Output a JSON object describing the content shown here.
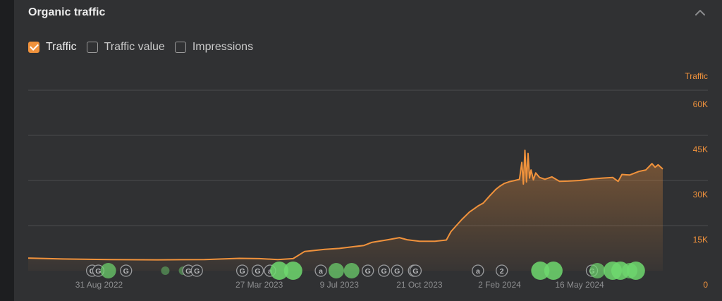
{
  "panel": {
    "title": "Organic traffic",
    "collapse_icon": "chevron-up-icon"
  },
  "toggles": [
    {
      "label": "Traffic",
      "checked": true
    },
    {
      "label": "Traffic value",
      "checked": false
    },
    {
      "label": "Impressions",
      "checked": false
    }
  ],
  "colors": {
    "accent": "#f0923c",
    "marker_green": "#6fd86f",
    "grid": "#4a4b4d"
  },
  "chart_data": {
    "type": "area",
    "y_axis_title": "Traffic",
    "y_ticks": [
      "60K",
      "45K",
      "30K",
      "15K",
      "0"
    ],
    "y_tick_values": [
      60000,
      45000,
      30000,
      15000,
      0
    ],
    "ylim": [
      0,
      60000
    ],
    "x_tick_labels": [
      "31 Aug 2022",
      "27 Mar 2023",
      "9 Jul 2023",
      "21 Oct 2023",
      "2 Feb 2024",
      "16 May 2024"
    ],
    "x_tick_dates": [
      "2022-08-31",
      "2023-03-27",
      "2023-07-09",
      "2023-10-21",
      "2024-02-02",
      "2024-05-16"
    ],
    "xlim": [
      "2022-05-31",
      "2024-09-01"
    ],
    "grid": true,
    "series": [
      {
        "name": "Traffic",
        "points": [
          [
            "2022-05-31",
            4200
          ],
          [
            "2022-07-15",
            3900
          ],
          [
            "2022-09-15",
            3700
          ],
          [
            "2022-11-15",
            3600
          ],
          [
            "2023-01-15",
            3700
          ],
          [
            "2023-03-01",
            4100
          ],
          [
            "2023-03-27",
            4000
          ],
          [
            "2023-04-20",
            3700
          ],
          [
            "2023-05-10",
            4000
          ],
          [
            "2023-05-25",
            6400
          ],
          [
            "2023-06-20",
            7100
          ],
          [
            "2023-07-09",
            7400
          ],
          [
            "2023-07-25",
            7900
          ],
          [
            "2023-08-10",
            8400
          ],
          [
            "2023-08-20",
            9400
          ],
          [
            "2023-09-10",
            10300
          ],
          [
            "2023-09-25",
            11000
          ],
          [
            "2023-10-05",
            10300
          ],
          [
            "2023-10-21",
            9800
          ],
          [
            "2023-11-10",
            9800
          ],
          [
            "2023-11-25",
            10200
          ],
          [
            "2023-12-01",
            13000
          ],
          [
            "2023-12-15",
            17000
          ],
          [
            "2023-12-25",
            19500
          ],
          [
            "2024-01-05",
            21500
          ],
          [
            "2024-01-12",
            22500
          ],
          [
            "2024-01-20",
            24800
          ],
          [
            "2024-01-28",
            27000
          ],
          [
            "2024-02-02",
            28000
          ],
          [
            "2024-02-08",
            29000
          ],
          [
            "2024-02-15",
            29600
          ],
          [
            "2024-02-22",
            30000
          ],
          [
            "2024-02-28",
            30400
          ],
          [
            "2024-03-02",
            36000
          ],
          [
            "2024-03-04",
            28800
          ],
          [
            "2024-03-06",
            40000
          ],
          [
            "2024-03-08",
            29500
          ],
          [
            "2024-03-10",
            39000
          ],
          [
            "2024-03-12",
            30800
          ],
          [
            "2024-03-14",
            33500
          ],
          [
            "2024-03-17",
            30200
          ],
          [
            "2024-03-20",
            32500
          ],
          [
            "2024-03-25",
            31000
          ],
          [
            "2024-04-01",
            30400
          ],
          [
            "2024-04-10",
            31200
          ],
          [
            "2024-04-20",
            29700
          ],
          [
            "2024-05-01",
            29800
          ],
          [
            "2024-05-16",
            30000
          ],
          [
            "2024-06-01",
            30500
          ],
          [
            "2024-06-15",
            30800
          ],
          [
            "2024-06-28",
            31000
          ],
          [
            "2024-07-05",
            29700
          ],
          [
            "2024-07-10",
            32000
          ],
          [
            "2024-07-20",
            31800
          ],
          [
            "2024-08-01",
            33000
          ],
          [
            "2024-08-10",
            33500
          ],
          [
            "2024-08-18",
            35600
          ],
          [
            "2024-08-22",
            34400
          ],
          [
            "2024-08-26",
            35200
          ],
          [
            "2024-09-01",
            33800
          ]
        ]
      }
    ],
    "annotations": [
      {
        "date": "2022-08-22",
        "type": "letter",
        "label": "G"
      },
      {
        "date": "2022-08-30",
        "type": "letter",
        "label": "G"
      },
      {
        "date": "2022-09-12",
        "type": "dot",
        "level": 2
      },
      {
        "date": "2022-10-05",
        "type": "letter",
        "label": "G"
      },
      {
        "date": "2022-11-25",
        "type": "dot",
        "level": 1
      },
      {
        "date": "2022-12-18",
        "type": "dot",
        "level": 1
      },
      {
        "date": "2022-12-25",
        "type": "letter",
        "label": "G"
      },
      {
        "date": "2023-01-05",
        "type": "letter",
        "label": "G"
      },
      {
        "date": "2023-03-05",
        "type": "letter",
        "label": "G"
      },
      {
        "date": "2023-03-25",
        "type": "letter",
        "label": "G"
      },
      {
        "date": "2023-04-10",
        "type": "letter",
        "label": "a"
      },
      {
        "date": "2023-04-22",
        "type": "dot",
        "level": 3
      },
      {
        "date": "2023-05-10",
        "type": "dot",
        "level": 3
      },
      {
        "date": "2023-06-15",
        "type": "letter",
        "label": "a"
      },
      {
        "date": "2023-07-05",
        "type": "dot",
        "level": 2
      },
      {
        "date": "2023-07-25",
        "type": "dot",
        "level": 2
      },
      {
        "date": "2023-08-15",
        "type": "letter",
        "label": "G"
      },
      {
        "date": "2023-09-05",
        "type": "letter",
        "label": "G"
      },
      {
        "date": "2023-09-22",
        "type": "letter",
        "label": "G"
      },
      {
        "date": "2023-10-14",
        "type": "letter",
        "label": "G"
      },
      {
        "date": "2023-10-16",
        "type": "letter",
        "label": "G"
      },
      {
        "date": "2024-01-05",
        "type": "letter",
        "label": "a"
      },
      {
        "date": "2024-02-05",
        "type": "letter",
        "label": "2"
      },
      {
        "date": "2024-03-26",
        "type": "dot",
        "level": 3
      },
      {
        "date": "2024-04-12",
        "type": "dot",
        "level": 3
      },
      {
        "date": "2024-06-01",
        "type": "letter",
        "label": "G"
      },
      {
        "date": "2024-06-08",
        "type": "dot",
        "level": 2
      },
      {
        "date": "2024-06-28",
        "type": "dot",
        "level": 3
      },
      {
        "date": "2024-07-08",
        "type": "dot",
        "level": 3
      },
      {
        "date": "2024-07-20",
        "type": "dot",
        "level": 2
      },
      {
        "date": "2024-07-28",
        "type": "dot",
        "level": 3
      }
    ]
  }
}
